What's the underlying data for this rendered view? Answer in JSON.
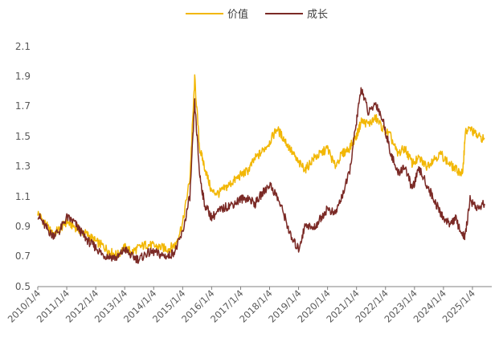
{
  "chart_data": {
    "type": "line",
    "title": "",
    "xlabel": "",
    "ylabel": "",
    "ylim": [
      0.5,
      2.1
    ],
    "yticks": [
      0.5,
      0.7,
      0.9,
      1.1,
      1.3,
      1.5,
      1.7,
      1.9,
      2.1
    ],
    "ytick_labels": [
      "0.5",
      "0.7",
      "0.9",
      "1.1",
      "1.3",
      "1.5",
      "1.7",
      "1.9",
      "2.1"
    ],
    "x_tick_labels": [
      "2010/1/4",
      "2011/1/4",
      "2012/1/4",
      "2013/1/4",
      "2014/1/4",
      "2015/1/4",
      "2016/1/4",
      "2017/1/4",
      "2018/1/4",
      "2019/1/4",
      "2020/1/4",
      "2021/1/4",
      "2022/1/4",
      "2023/1/4",
      "2024/1/4",
      "2025/1/4"
    ],
    "grid": false,
    "legend_position": "top-center",
    "x": [
      "2010/1",
      "2010/4",
      "2010/7",
      "2010/10",
      "2011/1",
      "2011/4",
      "2011/7",
      "2011/10",
      "2012/1",
      "2012/4",
      "2012/7",
      "2012/10",
      "2013/1",
      "2013/4",
      "2013/7",
      "2013/10",
      "2014/1",
      "2014/4",
      "2014/7",
      "2014/10",
      "2015/1",
      "2015/4",
      "2015/6",
      "2015/8",
      "2015/10",
      "2016/1",
      "2016/4",
      "2016/7",
      "2016/10",
      "2017/1",
      "2017/4",
      "2017/7",
      "2017/10",
      "2018/1",
      "2018/4",
      "2018/7",
      "2018/10",
      "2019/1",
      "2019/4",
      "2019/7",
      "2019/10",
      "2020/1",
      "2020/4",
      "2020/7",
      "2020/10",
      "2021/1",
      "2021/3",
      "2021/6",
      "2021/9",
      "2021/12",
      "2022/3",
      "2022/6",
      "2022/9",
      "2022/12",
      "2023/3",
      "2023/6",
      "2023/9",
      "2023/12",
      "2024/3",
      "2024/6",
      "2024/9",
      "2024/10",
      "2024/12",
      "2025/3",
      "2025/6"
    ],
    "series": [
      {
        "name": "价值",
        "color": "#F2B705",
        "values": [
          0.99,
          0.92,
          0.85,
          0.88,
          0.93,
          0.9,
          0.87,
          0.84,
          0.8,
          0.77,
          0.73,
          0.71,
          0.76,
          0.73,
          0.76,
          0.78,
          0.77,
          0.76,
          0.75,
          0.78,
          0.92,
          1.22,
          1.88,
          1.42,
          1.3,
          1.13,
          1.12,
          1.16,
          1.2,
          1.24,
          1.27,
          1.35,
          1.4,
          1.46,
          1.55,
          1.48,
          1.4,
          1.32,
          1.28,
          1.35,
          1.38,
          1.42,
          1.3,
          1.38,
          1.42,
          1.5,
          1.6,
          1.58,
          1.62,
          1.55,
          1.5,
          1.38,
          1.42,
          1.32,
          1.35,
          1.3,
          1.35,
          1.38,
          1.32,
          1.28,
          1.25,
          1.52,
          1.55,
          1.5,
          1.48
        ]
      },
      {
        "name": "成长",
        "color": "#7B2A26",
        "values": [
          0.98,
          0.9,
          0.84,
          0.87,
          0.96,
          0.93,
          0.86,
          0.8,
          0.76,
          0.71,
          0.7,
          0.69,
          0.75,
          0.7,
          0.68,
          0.72,
          0.73,
          0.71,
          0.7,
          0.74,
          0.86,
          1.1,
          1.72,
          1.25,
          1.05,
          0.96,
          1.0,
          1.03,
          1.05,
          1.08,
          1.09,
          1.05,
          1.12,
          1.18,
          1.1,
          0.98,
          0.82,
          0.75,
          0.92,
          0.88,
          0.95,
          1.02,
          0.98,
          1.1,
          1.25,
          1.6,
          1.82,
          1.65,
          1.72,
          1.6,
          1.4,
          1.25,
          1.3,
          1.15,
          1.28,
          1.18,
          1.08,
          0.98,
          0.92,
          0.95,
          0.84,
          0.83,
          1.08,
          1.02,
          1.05
        ]
      }
    ]
  }
}
